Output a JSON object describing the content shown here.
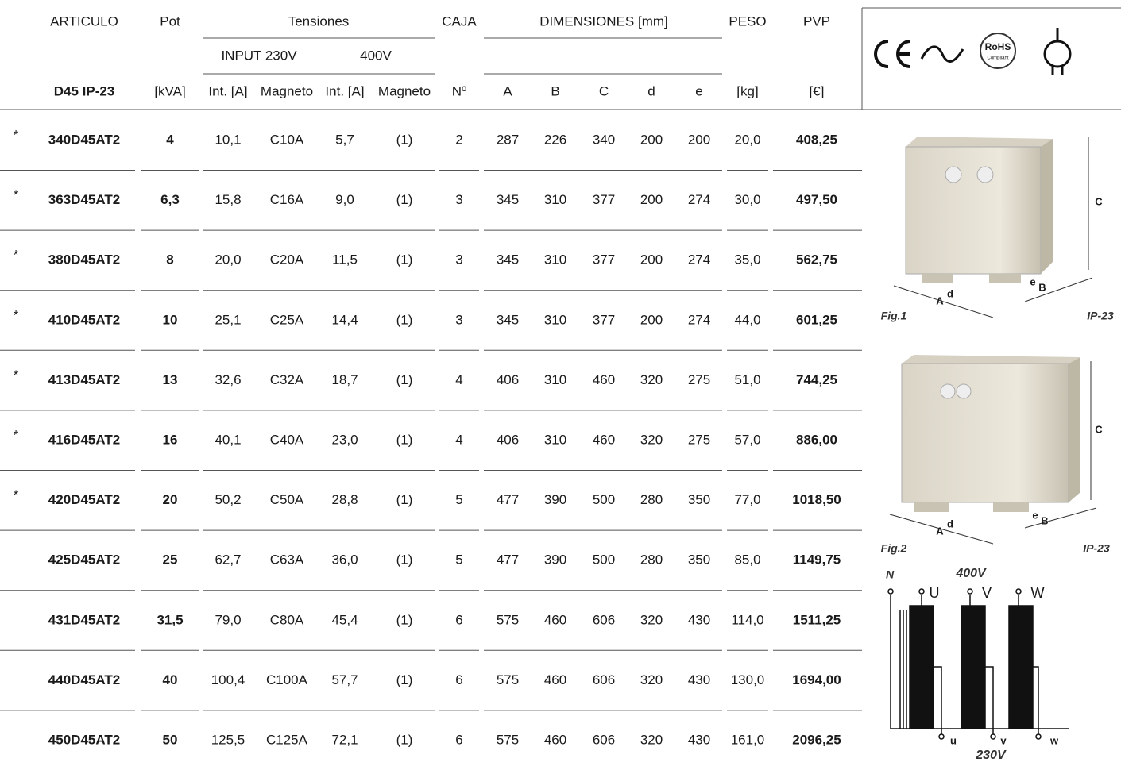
{
  "header": {
    "top": [
      "ARTICULO",
      "Pot",
      "Tensiones",
      "CAJA",
      "DIMENSIONES [mm]",
      "PESO",
      "PVP"
    ],
    "sub": [
      "INPUT 230V",
      "400V"
    ],
    "units": [
      "D45 IP-23",
      "[kVA]",
      "Int. [A]",
      "Magneto",
      "Int. [A]",
      "Magneto",
      "Nº",
      "A",
      "B",
      "C",
      "d",
      "e",
      "[kg]",
      "[€]"
    ]
  },
  "rows": [
    {
      "mark": "*",
      "cells": [
        "340D45AT2",
        "4",
        "10,1",
        "C10A",
        "5,7",
        "(1)",
        "2",
        "287",
        "226",
        "340",
        "200",
        "200",
        "20,0",
        "408,25"
      ]
    },
    {
      "mark": "*",
      "cells": [
        "363D45AT2",
        "6,3",
        "15,8",
        "C16A",
        "9,0",
        "(1)",
        "3",
        "345",
        "310",
        "377",
        "200",
        "274",
        "30,0",
        "497,50"
      ]
    },
    {
      "mark": "*",
      "cells": [
        "380D45AT2",
        "8",
        "20,0",
        "C20A",
        "11,5",
        "(1)",
        "3",
        "345",
        "310",
        "377",
        "200",
        "274",
        "35,0",
        "562,75"
      ]
    },
    {
      "mark": "*",
      "cells": [
        "410D45AT2",
        "10",
        "25,1",
        "C25A",
        "14,4",
        "(1)",
        "3",
        "345",
        "310",
        "377",
        "200",
        "274",
        "44,0",
        "601,25"
      ]
    },
    {
      "mark": "*",
      "cells": [
        "413D45AT2",
        "13",
        "32,6",
        "C32A",
        "18,7",
        "(1)",
        "4",
        "406",
        "310",
        "460",
        "320",
        "275",
        "51,0",
        "744,25"
      ]
    },
    {
      "mark": "*",
      "cells": [
        "416D45AT2",
        "16",
        "40,1",
        "C40A",
        "23,0",
        "(1)",
        "4",
        "406",
        "310",
        "460",
        "320",
        "275",
        "57,0",
        "886,00"
      ]
    },
    {
      "mark": "*",
      "cells": [
        "420D45AT2",
        "20",
        "50,2",
        "C50A",
        "28,8",
        "(1)",
        "5",
        "477",
        "390",
        "500",
        "280",
        "350",
        "77,0",
        "1018,50"
      ]
    },
    {
      "cells": [
        "425D45AT2",
        "25",
        "62,7",
        "C63A",
        "36,0",
        "(1)",
        "5",
        "477",
        "390",
        "500",
        "280",
        "350",
        "85,0",
        "1149,75"
      ]
    },
    {
      "cells": [
        "431D45AT2",
        "31,5",
        "79,0",
        "C80A",
        "45,4",
        "(1)",
        "6",
        "575",
        "460",
        "606",
        "320",
        "430",
        "114,0",
        "1511,25"
      ]
    },
    {
      "cells": [
        "440D45AT2",
        "40",
        "100,4",
        "C100A",
        "57,7",
        "(1)",
        "6",
        "575",
        "460",
        "606",
        "320",
        "430",
        "130,0",
        "1694,00"
      ]
    },
    {
      "cells": [
        "450D45AT2",
        "50",
        "125,5",
        "C125A",
        "72,1",
        "(1)",
        "6",
        "575",
        "460",
        "606",
        "320",
        "430",
        "161,0",
        "2096,25"
      ]
    }
  ],
  "logos": {
    "rohs": "RoHS",
    "compliant": "Compliant"
  },
  "fig1": {
    "caption": "Fig.1",
    "protection": "IP-23",
    "labels": [
      "C",
      "A",
      "d",
      "e",
      "B"
    ]
  },
  "fig2": {
    "caption": "Fig.2",
    "protection": "IP-23",
    "labels": [
      "C",
      "A",
      "d",
      "e",
      "B"
    ]
  },
  "diagram": {
    "neutral": "N",
    "input": "400V",
    "primary": [
      "U",
      "V",
      "W"
    ],
    "secondary": [
      "u",
      "v",
      "w"
    ],
    "output": "230V"
  }
}
